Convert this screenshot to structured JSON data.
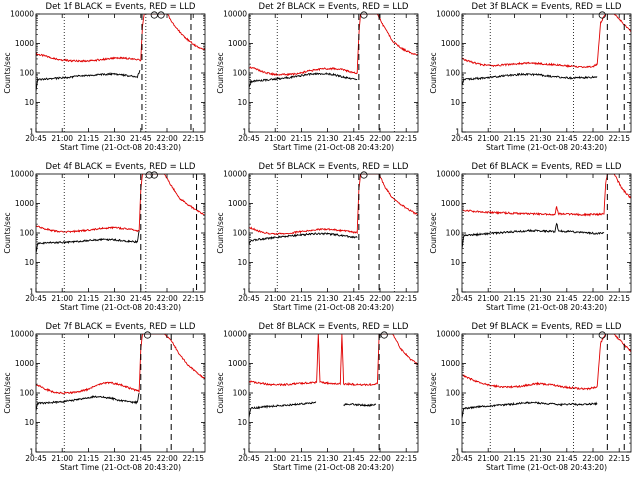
{
  "page": {
    "background": "#ffffff"
  },
  "colors": {
    "events": "#000000",
    "lld": "#e00000",
    "axis": "#000000"
  },
  "common": {
    "xlabel": "Start Time (21-Oct-08 20:43:20)",
    "ylabel": "Counts/sec",
    "y_ticks": [
      "1",
      "10",
      "100",
      "1000",
      "10000"
    ]
  },
  "chart_data": [
    {
      "type": "line",
      "title": "Det 1f BLACK = Events, RED = LLD",
      "x_ticks": [
        "20:45",
        "21:00",
        "21:15",
        "21:30",
        "21:45",
        "22:00",
        "22:15"
      ],
      "xlim_min": [
        0,
        100
      ],
      "ylim": [
        1,
        10000
      ],
      "yscale": "log",
      "dotted_lines_min": [
        16.7,
        65
      ],
      "dashed_lines_min": [
        62.7,
        91.7
      ],
      "saturation_circles_min": [
        70,
        74
      ],
      "series": [
        {
          "name": "LLD",
          "color": "red",
          "x": [
            0,
            5,
            10,
            15,
            20,
            25,
            30,
            35,
            40,
            45,
            50,
            55,
            60,
            62,
            63,
            64,
            66,
            70,
            76,
            78,
            80,
            85,
            90,
            95,
            100
          ],
          "y": [
            440,
            380,
            320,
            280,
            260,
            255,
            255,
            270,
            290,
            310,
            320,
            310,
            280,
            270,
            4000,
            10000,
            10000,
            10000,
            10000,
            10000,
            5500,
            2500,
            1300,
            800,
            600
          ]
        },
        {
          "name": "Events",
          "color": "black",
          "x": [
            0,
            1,
            5,
            10,
            15,
            20,
            25,
            30,
            35,
            40,
            45,
            50,
            55,
            60,
            62,
            63
          ],
          "y": [
            25,
            60,
            62,
            65,
            68,
            72,
            78,
            82,
            86,
            90,
            92,
            88,
            80,
            75,
            140,
            0
          ]
        }
      ]
    },
    {
      "type": "line",
      "title": "Det 2f BLACK = Events, RED = LLD",
      "x_ticks": [
        "20:45",
        "21:00",
        "21:15",
        "21:30",
        "21:45",
        "22:00",
        "22:15"
      ],
      "xlim_min": [
        0,
        100
      ],
      "ylim": [
        1,
        10000
      ],
      "yscale": "log",
      "dotted_lines_min": [
        16.7,
        86
      ],
      "dashed_lines_min": [
        65,
        77
      ],
      "saturation_circles_min": [
        68
      ],
      "series": [
        {
          "name": "LLD",
          "color": "red",
          "x": [
            0,
            5,
            10,
            15,
            20,
            25,
            30,
            35,
            40,
            45,
            50,
            55,
            60,
            64,
            65,
            66,
            70,
            73,
            76,
            80,
            85,
            90,
            95,
            100
          ],
          "y": [
            160,
            130,
            100,
            90,
            88,
            90,
            100,
            115,
            130,
            140,
            140,
            130,
            110,
            100,
            2000,
            10000,
            10000,
            10000,
            10000,
            3500,
            1200,
            700,
            500,
            400
          ]
        },
        {
          "name": "Events",
          "color": "black",
          "x": [
            0,
            1,
            5,
            10,
            15,
            20,
            25,
            30,
            35,
            40,
            45,
            50,
            55,
            60,
            64
          ],
          "y": [
            30,
            50,
            55,
            58,
            62,
            66,
            72,
            80,
            90,
            95,
            95,
            88,
            75,
            65,
            60
          ]
        }
      ]
    },
    {
      "type": "line",
      "title": "Det 3f BLACK = Events, RED = LLD",
      "x_ticks": [
        "20:45",
        "21:00",
        "21:15",
        "21:30",
        "21:45",
        "22:00",
        "22:15"
      ],
      "xlim_min": [
        0,
        100
      ],
      "ylim": [
        1,
        10000
      ],
      "yscale": "log",
      "dotted_lines_min": [
        16.7,
        66
      ],
      "dashed_lines_min": [
        86,
        96
      ],
      "saturation_circles_min": [
        83
      ],
      "series": [
        {
          "name": "LLD",
          "color": "red",
          "x": [
            0,
            5,
            10,
            15,
            20,
            25,
            30,
            35,
            40,
            45,
            50,
            55,
            60,
            65,
            70,
            75,
            78,
            80,
            82,
            85,
            90,
            95,
            100
          ],
          "y": [
            300,
            240,
            200,
            180,
            180,
            190,
            200,
            210,
            220,
            210,
            200,
            190,
            180,
            170,
            160,
            160,
            170,
            200,
            5000,
            10000,
            10000,
            5000,
            2500
          ]
        },
        {
          "name": "Events",
          "color": "black",
          "x": [
            0,
            1,
            5,
            10,
            15,
            20,
            25,
            30,
            35,
            40,
            45,
            50,
            55,
            60,
            65,
            70,
            75,
            80
          ],
          "y": [
            40,
            60,
            62,
            65,
            70,
            75,
            80,
            85,
            90,
            90,
            88,
            80,
            75,
            70,
            68,
            70,
            70,
            75
          ]
        }
      ]
    },
    {
      "type": "line",
      "title": "Det 4f BLACK = Events, RED = LLD",
      "x_ticks": [
        "20:45",
        "21:00",
        "21:15",
        "21:30",
        "21:45",
        "22:00",
        "22:15"
      ],
      "xlim_min": [
        0,
        100
      ],
      "ylim": [
        1,
        10000
      ],
      "yscale": "log",
      "dotted_lines_min": [
        16.7,
        65
      ],
      "dashed_lines_min": [
        62,
        95
      ],
      "saturation_circles_min": [
        67,
        70
      ],
      "series": [
        {
          "name": "LLD",
          "color": "red",
          "x": [
            0,
            5,
            10,
            15,
            20,
            25,
            30,
            35,
            40,
            45,
            50,
            55,
            60,
            61,
            62,
            63,
            66,
            72,
            76,
            80,
            85,
            90,
            95,
            100
          ],
          "y": [
            180,
            140,
            120,
            110,
            110,
            115,
            125,
            135,
            145,
            150,
            145,
            135,
            120,
            115,
            3000,
            10000,
            10000,
            10000,
            10000,
            4000,
            1500,
            900,
            600,
            400
          ]
        },
        {
          "name": "Events",
          "color": "black",
          "x": [
            0,
            1,
            5,
            10,
            15,
            20,
            25,
            30,
            35,
            40,
            45,
            50,
            55,
            60,
            61
          ],
          "y": [
            20,
            45,
            46,
            47,
            48,
            50,
            52,
            55,
            58,
            60,
            60,
            56,
            52,
            50,
            120
          ]
        }
      ]
    },
    {
      "type": "line",
      "title": "Det 5f BLACK = Events, RED = LLD",
      "x_ticks": [
        "20:45",
        "21:00",
        "21:15",
        "21:30",
        "21:45",
        "22:00",
        "22:15"
      ],
      "xlim_min": [
        0,
        100
      ],
      "ylim": [
        1,
        10000
      ],
      "yscale": "log",
      "dotted_lines_min": [
        16.7,
        86
      ],
      "dashed_lines_min": [
        65,
        77
      ],
      "saturation_circles_min": [
        68
      ],
      "series": [
        {
          "name": "LLD",
          "color": "red",
          "x": [
            0,
            5,
            10,
            15,
            20,
            25,
            30,
            35,
            40,
            45,
            50,
            55,
            60,
            64,
            65,
            66,
            70,
            74,
            77,
            80,
            85,
            90,
            95,
            100
          ],
          "y": [
            160,
            120,
            100,
            95,
            95,
            100,
            110,
            120,
            130,
            135,
            130,
            120,
            110,
            100,
            3000,
            10000,
            10000,
            10000,
            10000,
            4000,
            1500,
            900,
            600,
            400
          ]
        },
        {
          "name": "Events",
          "color": "black",
          "x": [
            0,
            1,
            5,
            10,
            15,
            20,
            25,
            30,
            35,
            40,
            45,
            50,
            55,
            60,
            64
          ],
          "y": [
            40,
            55,
            60,
            65,
            70,
            75,
            80,
            85,
            90,
            95,
            95,
            90,
            82,
            75,
            70
          ]
        }
      ]
    },
    {
      "type": "line",
      "title": "Det 6f BLACK = Events, RED = LLD",
      "x_ticks": [
        "20:45",
        "21:00",
        "21:15",
        "21:30",
        "21:45",
        "22:00",
        "22:15"
      ],
      "xlim_min": [
        0,
        100
      ],
      "ylim": [
        1,
        10000
      ],
      "yscale": "log",
      "dotted_lines_min": [
        16.7
      ],
      "dashed_lines_min": [
        86
      ],
      "saturation_circles_min": [],
      "series": [
        {
          "name": "LLD",
          "color": "red",
          "x": [
            0,
            5,
            10,
            15,
            20,
            25,
            30,
            35,
            40,
            45,
            50,
            55,
            56,
            57,
            60,
            65,
            70,
            75,
            80,
            84,
            85,
            86,
            90,
            95,
            100
          ],
          "y": [
            600,
            560,
            520,
            500,
            490,
            480,
            470,
            460,
            450,
            440,
            430,
            420,
            800,
            450,
            440,
            430,
            420,
            420,
            430,
            440,
            5000,
            10000,
            10000,
            3000,
            1500
          ]
        },
        {
          "name": "Events",
          "color": "black",
          "x": [
            0,
            1,
            5,
            10,
            15,
            20,
            25,
            30,
            35,
            40,
            45,
            50,
            55,
            56,
            57,
            60,
            65,
            70,
            75,
            80,
            84
          ],
          "y": [
            30,
            80,
            85,
            90,
            95,
            100,
            105,
            110,
            115,
            120,
            120,
            115,
            110,
            220,
            120,
            115,
            110,
            105,
            100,
            95,
            100
          ]
        }
      ]
    },
    {
      "type": "line",
      "title": "Det 7f BLACK = Events, RED = LLD",
      "x_ticks": [
        "20:45",
        "21:00",
        "21:15",
        "21:30",
        "21:45",
        "22:00",
        "22:15"
      ],
      "xlim_min": [
        0,
        100
      ],
      "ylim": [
        1,
        10000
      ],
      "yscale": "log",
      "dotted_lines_min": [
        16.7
      ],
      "dashed_lines_min": [
        62,
        80
      ],
      "saturation_circles_min": [
        66
      ],
      "series": [
        {
          "name": "LLD",
          "color": "red",
          "x": [
            0,
            5,
            10,
            15,
            20,
            25,
            30,
            35,
            40,
            45,
            50,
            55,
            60,
            61,
            62,
            63,
            66,
            68,
            72,
            76,
            80,
            85,
            90,
            95,
            100
          ],
          "y": [
            200,
            140,
            110,
            100,
            100,
            110,
            130,
            170,
            220,
            220,
            190,
            150,
            120,
            110,
            3000,
            10000,
            10000,
            10000,
            10000,
            10000,
            6000,
            2000,
            900,
            500,
            300
          ]
        },
        {
          "name": "Events",
          "color": "black",
          "x": [
            0,
            1,
            5,
            10,
            15,
            20,
            25,
            30,
            35,
            40,
            45,
            50,
            55,
            60,
            61
          ],
          "y": [
            25,
            45,
            46,
            48,
            50,
            55,
            60,
            68,
            75,
            72,
            65,
            56,
            50,
            48,
            100
          ]
        }
      ]
    },
    {
      "type": "line",
      "title": "Det 8f BLACK = Events, RED = LLD",
      "x_ticks": [
        "20:45",
        "21:00",
        "21:15",
        "21:30",
        "21:45",
        "22:00",
        "22:15"
      ],
      "xlim_min": [
        0,
        100
      ],
      "ylim": [
        1,
        10000
      ],
      "yscale": "log",
      "dotted_lines_min": [],
      "dashed_lines_min": [
        77
      ],
      "saturation_circles_min": [
        80
      ],
      "series": [
        {
          "name": "LLD",
          "color": "red",
          "x": [
            0,
            5,
            10,
            15,
            20,
            25,
            30,
            35,
            40,
            41,
            42,
            45,
            50,
            54,
            55,
            56,
            60,
            65,
            70,
            75,
            76,
            77,
            80,
            85,
            90,
            95,
            100
          ],
          "y": [
            250,
            220,
            200,
            190,
            190,
            200,
            210,
            220,
            230,
            10000,
            230,
            220,
            210,
            200,
            10000,
            200,
            200,
            190,
            190,
            200,
            210,
            10000,
            10000,
            10000,
            3000,
            1500,
            900
          ]
        },
        {
          "name": "Events",
          "color": "black",
          "x": [
            0,
            1,
            5,
            10,
            15,
            20,
            25,
            30,
            35,
            40,
            41,
            45,
            50,
            54,
            55,
            56,
            60,
            65,
            70,
            75
          ],
          "y": [
            15,
            30,
            32,
            34,
            36,
            38,
            40,
            42,
            45,
            48,
            0,
            0,
            0,
            0,
            0,
            40,
            42,
            40,
            38,
            40
          ]
        }
      ]
    },
    {
      "type": "line",
      "title": "Det 9f BLACK = Events, RED = LLD",
      "x_ticks": [
        "20:45",
        "21:00",
        "21:15",
        "21:30",
        "21:45",
        "22:00",
        "22:15"
      ],
      "xlim_min": [
        0,
        100
      ],
      "ylim": [
        1,
        10000
      ],
      "yscale": "log",
      "dotted_lines_min": [
        16.7,
        66
      ],
      "dashed_lines_min": [
        86,
        96
      ],
      "saturation_circles_min": [
        83
      ],
      "series": [
        {
          "name": "LLD",
          "color": "red",
          "x": [
            0,
            5,
            10,
            15,
            20,
            25,
            30,
            35,
            40,
            45,
            50,
            55,
            60,
            65,
            70,
            75,
            78,
            80,
            82,
            85,
            90,
            95,
            100
          ],
          "y": [
            400,
            300,
            230,
            190,
            170,
            160,
            160,
            170,
            190,
            210,
            200,
            180,
            160,
            150,
            140,
            140,
            150,
            170,
            5000,
            10000,
            10000,
            5000,
            2500
          ]
        },
        {
          "name": "Events",
          "color": "black",
          "x": [
            0,
            1,
            5,
            10,
            15,
            20,
            25,
            30,
            35,
            40,
            45,
            50,
            55,
            60,
            65,
            70,
            75,
            80
          ],
          "y": [
            15,
            30,
            32,
            34,
            36,
            38,
            40,
            42,
            45,
            48,
            46,
            44,
            42,
            40,
            42,
            40,
            42,
            44
          ]
        }
      ]
    }
  ]
}
